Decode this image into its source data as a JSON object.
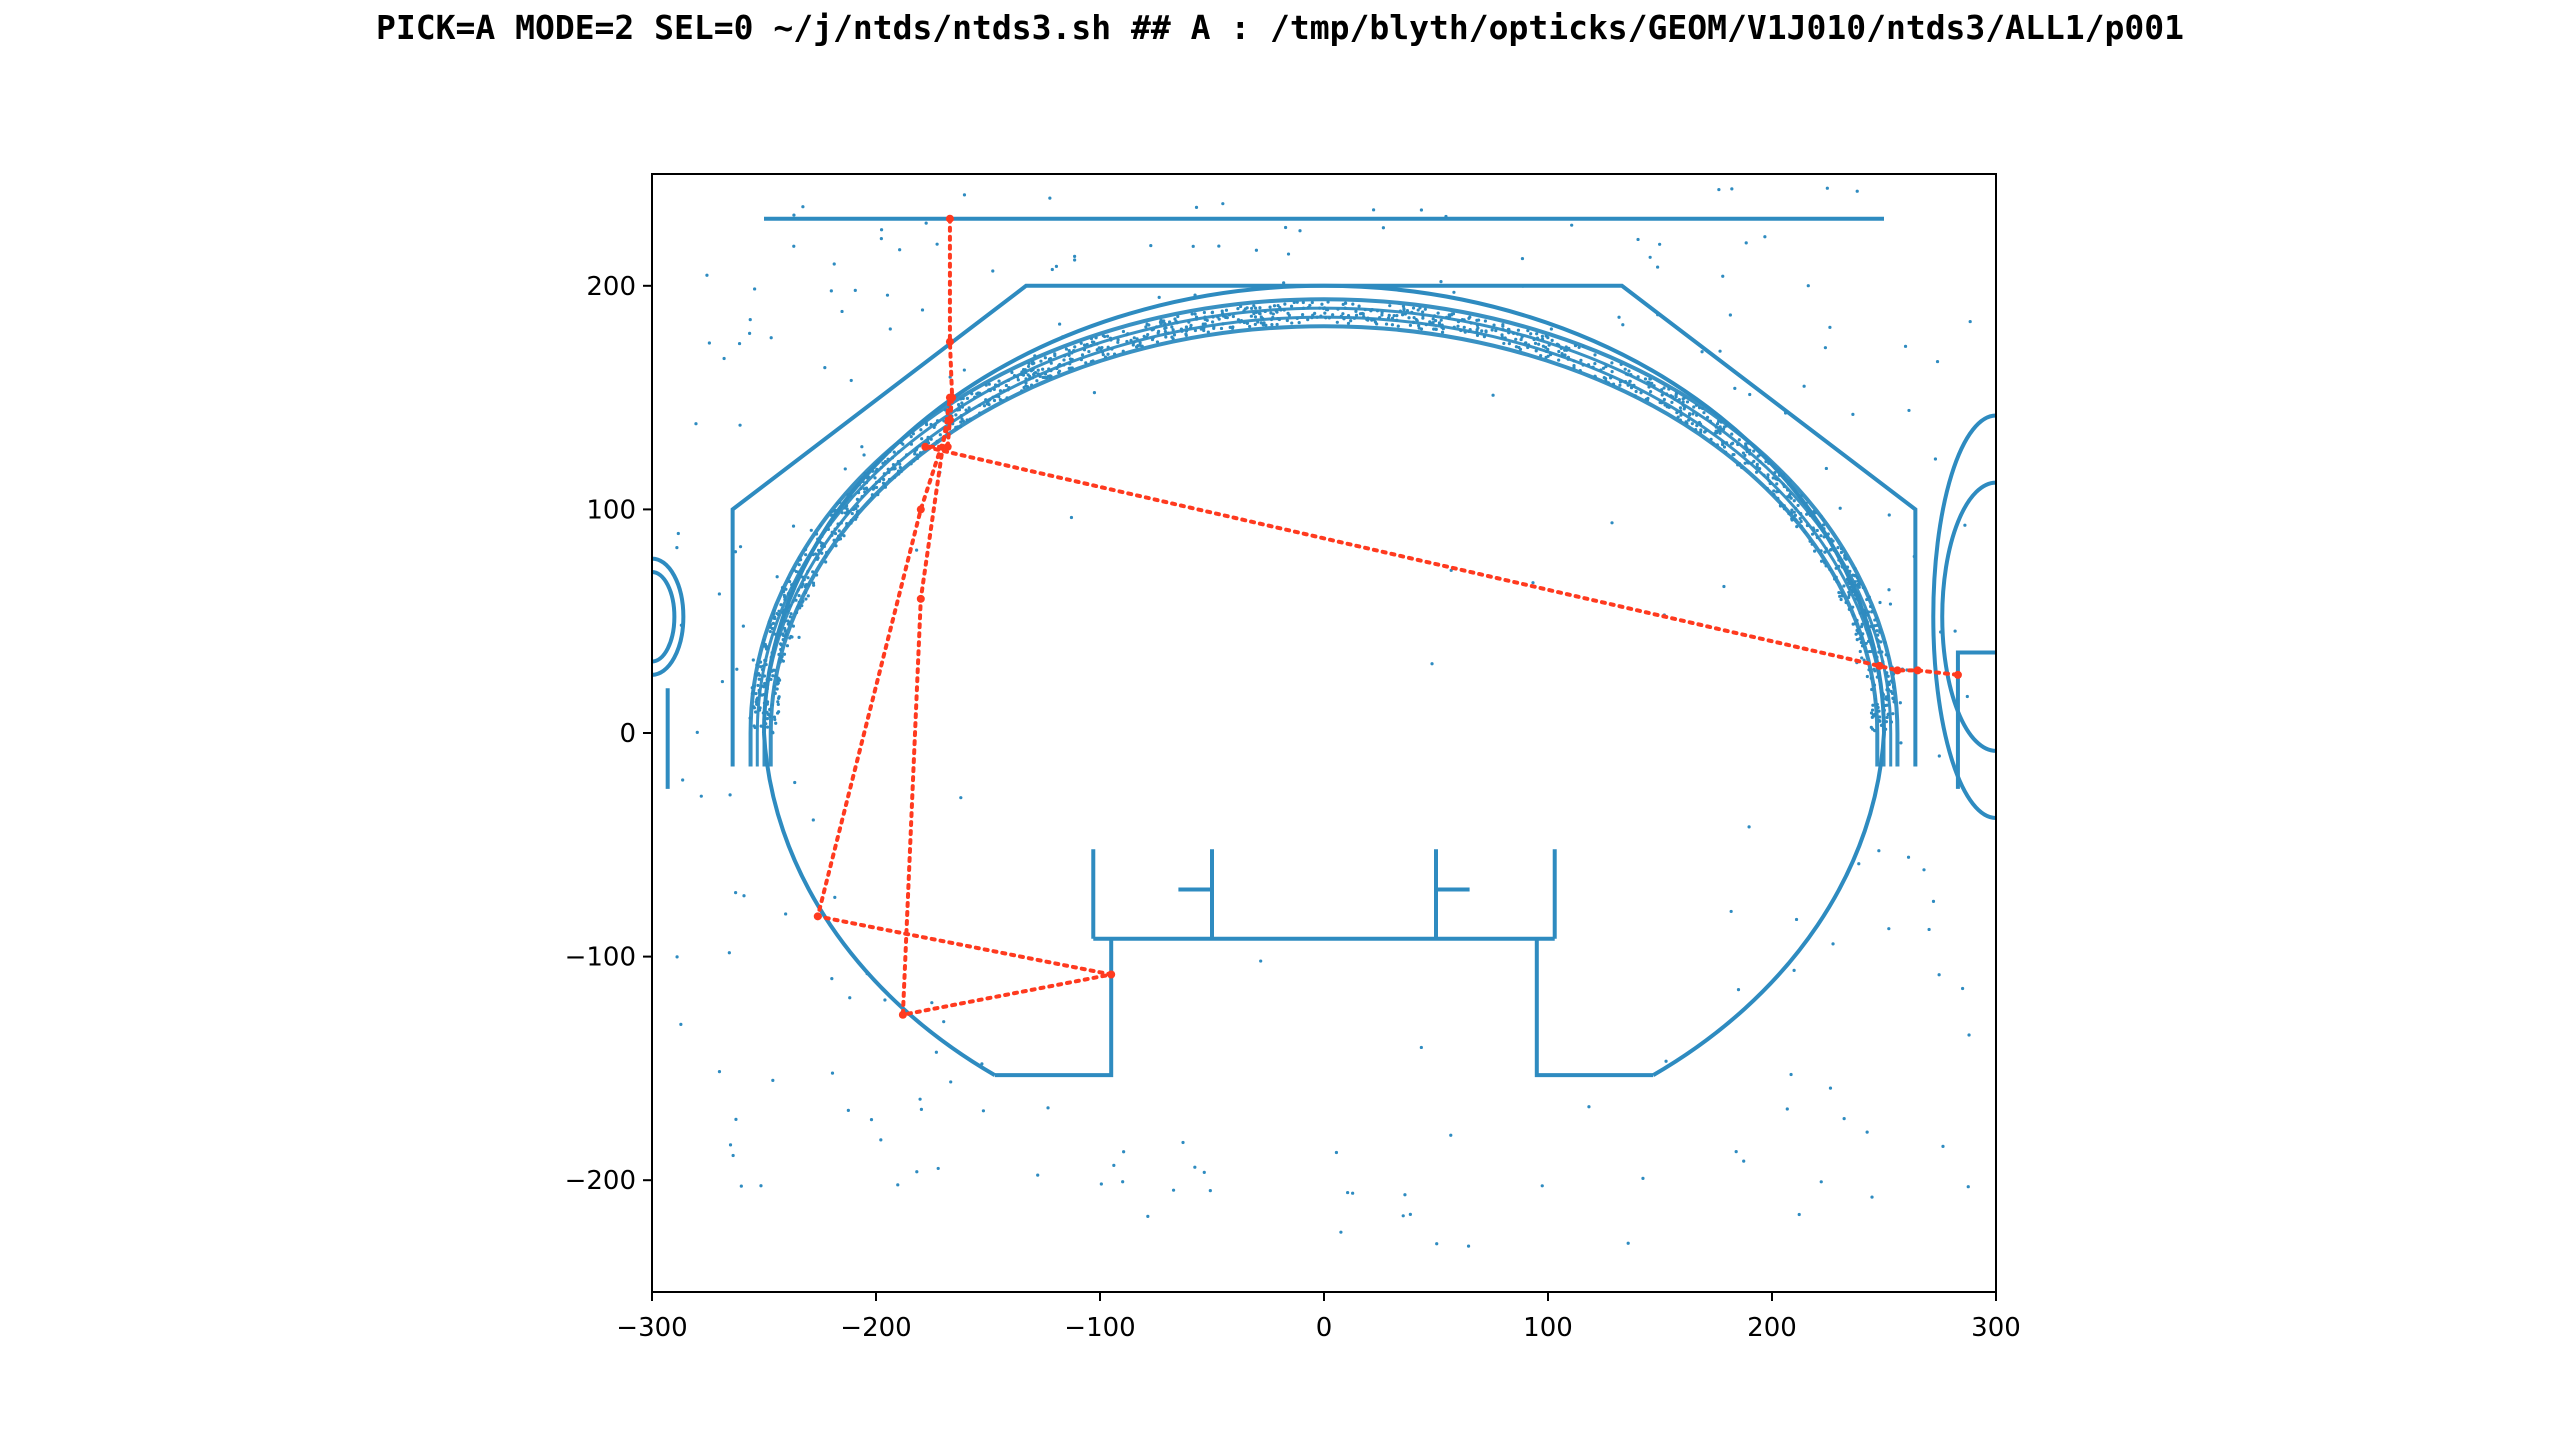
{
  "header": {
    "title": "PICK=A MODE=2 SEL=0 ~/j/ntds/ntds3.sh  ## A : /tmp/blyth/opticks/GEOM/V1J010/ntds3/ALL1/p001"
  },
  "chart_data": {
    "type": "scatter",
    "xlim": [
      -300,
      300
    ],
    "ylim": [
      -250,
      250
    ],
    "x_ticks": [
      -300,
      -200,
      -100,
      0,
      100,
      200,
      300
    ],
    "x_tick_labels": [
      "−300",
      "−200",
      "−100",
      "0",
      "100",
      "200",
      "300"
    ],
    "y_ticks": [
      -200,
      -100,
      0,
      100,
      200
    ],
    "y_tick_labels": [
      "−200",
      "−100",
      "0",
      "100",
      "200"
    ],
    "grid": false,
    "colors": {
      "geometry": "#2e8bc0",
      "photon_path": "#ff3a1f"
    },
    "geometry": {
      "ellipsoid_outer": {
        "cx": 0,
        "cy": 0,
        "rx": 250,
        "ry": 200
      },
      "ellipsoid_band": [
        {
          "cx": 0,
          "cy": 0,
          "rx": 256,
          "ry": 194
        },
        {
          "cx": 0,
          "cy": 0,
          "rx": 253,
          "ry": 190
        },
        {
          "cx": 0,
          "cy": 0,
          "rx": 250,
          "ry": 186
        },
        {
          "cx": 0,
          "cy": 0,
          "rx": 247,
          "ry": 182
        }
      ],
      "lower_ellipse": {
        "cx": 0,
        "cy": 0,
        "rx": 250,
        "ry": 200
      },
      "top_bar": [
        [
          -250,
          230
        ],
        [
          250,
          230
        ]
      ],
      "polylines": [
        [
          [
            -264,
            -15
          ],
          [
            -264,
            100
          ],
          [
            -133,
            200
          ],
          [
            133,
            200
          ],
          [
            264,
            100
          ],
          [
            264,
            -15
          ]
        ],
        [
          [
            -147,
            -153
          ],
          [
            -95,
            -153
          ],
          [
            -95,
            -92
          ]
        ],
        [
          [
            147,
            -153
          ],
          [
            95,
            -153
          ],
          [
            95,
            -92
          ]
        ],
        [
          [
            -103,
            -92
          ],
          [
            103,
            -92
          ]
        ],
        [
          [
            -103,
            -52
          ],
          [
            -103,
            -92
          ]
        ],
        [
          [
            103,
            -52
          ],
          [
            103,
            -92
          ]
        ],
        [
          [
            -50,
            -52
          ],
          [
            -50,
            -92
          ]
        ],
        [
          [
            50,
            -52
          ],
          [
            50,
            -92
          ]
        ],
        [
          [
            -65,
            -70
          ],
          [
            -50,
            -70
          ]
        ],
        [
          [
            50,
            -70
          ],
          [
            65,
            -70
          ]
        ],
        [
          [
            283,
            -25
          ],
          [
            283,
            36
          ],
          [
            300,
            36
          ]
        ],
        [
          [
            -293,
            -25
          ],
          [
            -293,
            20
          ]
        ]
      ],
      "side_arcs": [
        {
          "cx": -300,
          "cy": 52,
          "rx": 14,
          "ry": 26,
          "side": "left"
        },
        {
          "cx": -300,
          "cy": 52,
          "rx": 10,
          "ry": 20,
          "side": "left"
        },
        {
          "cx": 300,
          "cy": 52,
          "rx": 28,
          "ry": 90,
          "side": "right"
        },
        {
          "cx": 300,
          "cy": 52,
          "rx": 24,
          "ry": 60,
          "side": "right"
        }
      ]
    },
    "photon_path": {
      "name": "",
      "points": [
        [
          -167,
          230
        ],
        [
          -167,
          175
        ],
        [
          -166,
          150
        ],
        [
          -167,
          140
        ],
        [
          -168,
          128
        ],
        [
          -178,
          128
        ],
        [
          248,
          30
        ],
        [
          256,
          28
        ],
        [
          265,
          28
        ],
        [
          283,
          26
        ]
      ],
      "branch": [
        [
          -167,
          140
        ],
        [
          -180,
          100
        ],
        [
          -226,
          -82
        ],
        [
          -95,
          -108
        ],
        [
          -188,
          -126
        ],
        [
          -180,
          60
        ],
        [
          -167,
          150
        ]
      ]
    }
  }
}
